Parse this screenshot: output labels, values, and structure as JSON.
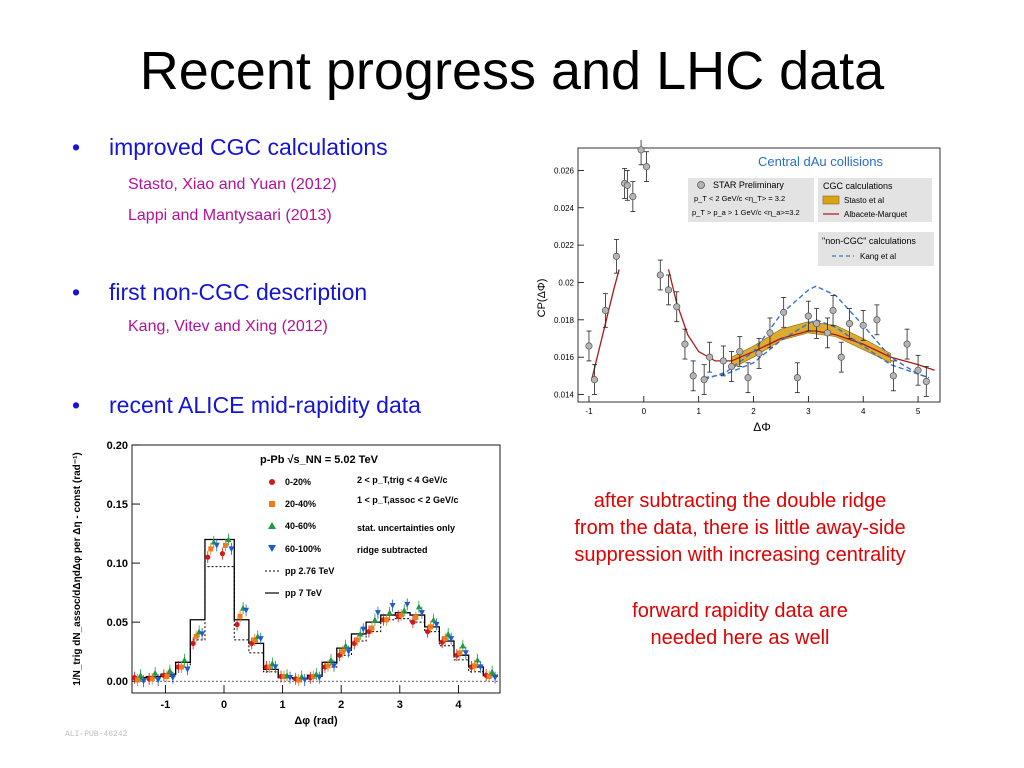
{
  "slide": {
    "title": "Recent progress and LHC data",
    "bullets": [
      {
        "symbol": "•",
        "text": "improved CGC calculations",
        "refs": [
          "Stasto, Xiao and Yuan (2012)",
          "Lappi and Mantysaari (2013)"
        ]
      },
      {
        "symbol": "•",
        "text": "first non-CGC description",
        "refs": [
          "Kang, Vitev and Xing (2012)"
        ]
      },
      {
        "symbol": "•",
        "text": "recent ALICE mid-rapidity data",
        "refs": []
      }
    ],
    "notes": [
      "after subtracting the double ridge",
      "from the data, there is little away-side",
      "suppression with increasing centrality",
      "forward rapidity data are",
      "needed here as well"
    ],
    "figure_id": "ALI-PUB-46242",
    "colors": {
      "bullet": "#1414d8",
      "ref": "#b0129a",
      "note": "#e00000"
    }
  },
  "chart_data": [
    {
      "type": "scatter",
      "title": "Central dAu collisions",
      "xlabel": "ΔΦ",
      "ylabel": "CP(ΔΦ)",
      "xlim": [
        -1.2,
        5.4
      ],
      "ylim": [
        0.0136,
        0.0272
      ],
      "xticks": [
        "-1",
        "0",
        "1",
        "2",
        "3",
        "4",
        "5"
      ],
      "yticks": [
        "0.014",
        "0.016",
        "0.018",
        "0.02",
        "0.022",
        "0.024",
        "0.026"
      ],
      "legend_data": {
        "title": "STAR Preliminary",
        "lines": [
          "p_T < 2 GeV/c <η_T> = 3.2",
          "p_T > p_a > 1 GeV/c <η_a>=3.2"
        ]
      },
      "legend_cgc": {
        "title": "CGC calculations",
        "items": [
          "Stasto et al",
          "Albacete-Marquet"
        ]
      },
      "legend_noncgc": {
        "title": "\"non-CGC\" calculations",
        "items": [
          "Kang et al"
        ]
      },
      "series": [
        {
          "name": "STAR Preliminary",
          "marker": "circle",
          "x": [
            -1.0,
            -0.9,
            -0.7,
            -0.5,
            -0.35,
            -0.3,
            -0.2,
            -0.05,
            0.05,
            0.3,
            0.45,
            0.6,
            0.75,
            0.9,
            1.1,
            1.2,
            1.45,
            1.6,
            1.75,
            1.9,
            2.1,
            2.3,
            2.55,
            2.8,
            3.0,
            3.15,
            3.35,
            3.45,
            3.6,
            3.75,
            4.0,
            4.25,
            4.55,
            4.8,
            5.0,
            5.15
          ],
          "y": [
            0.0166,
            0.0148,
            0.0185,
            0.0214,
            0.0253,
            0.0252,
            0.0246,
            0.0271,
            0.0262,
            0.0204,
            0.0196,
            0.0187,
            0.0167,
            0.015,
            0.0148,
            0.016,
            0.0158,
            0.0155,
            0.0163,
            0.0149,
            0.0162,
            0.0173,
            0.0184,
            0.0149,
            0.0182,
            0.0178,
            0.0173,
            0.0185,
            0.016,
            0.0178,
            0.0177,
            0.018,
            0.015,
            0.0167,
            0.0153,
            0.0147
          ],
          "err": [
            0.0008,
            0.0008,
            0.0009,
            0.0009,
            0.0008,
            0.0008,
            0.0008,
            0.0008,
            0.0008,
            0.0008,
            0.0008,
            0.0008,
            0.0008,
            0.0008,
            0.0008,
            0.0008,
            0.0008,
            0.0008,
            0.0008,
            0.0008,
            0.0008,
            0.0008,
            0.0008,
            0.0008,
            0.0008,
            0.0008,
            0.0008,
            0.0008,
            0.0008,
            0.0008,
            0.0008,
            0.0008,
            0.0008,
            0.0008,
            0.0008,
            0.0008
          ]
        },
        {
          "name": "Albacete-Marquet",
          "line": "solid",
          "color": "#b01818",
          "x": [
            -0.95,
            -0.85,
            -0.7,
            -0.55,
            -0.45,
            0.45,
            0.6,
            0.8,
            1.0,
            1.3,
            1.6,
            2.0,
            2.5,
            3.0,
            3.14,
            3.5,
            4.0,
            4.5,
            5.0,
            5.3
          ],
          "y": [
            0.0148,
            0.016,
            0.0178,
            0.0196,
            0.0207,
            0.0207,
            0.0189,
            0.0172,
            0.0163,
            0.0158,
            0.0158,
            0.0163,
            0.017,
            0.0174,
            0.0174,
            0.0172,
            0.0167,
            0.016,
            0.0156,
            0.0153
          ]
        },
        {
          "name": "Stasto et al",
          "band": true,
          "color": "#d9a21a",
          "x": [
            1.6,
            2.0,
            2.5,
            3.0,
            3.5,
            4.0,
            4.5
          ],
          "lo": [
            0.0154,
            0.016,
            0.0169,
            0.0173,
            0.0171,
            0.0164,
            0.0157
          ],
          "hi": [
            0.016,
            0.0166,
            0.0175,
            0.0179,
            0.0177,
            0.017,
            0.0162
          ]
        },
        {
          "name": "Kang et al",
          "line": "dashed",
          "color": "#3b73c8",
          "curves": [
            {
              "x": [
                1.1,
                1.5,
                2.0,
                2.5,
                3.0,
                3.14,
                3.5,
                4.0,
                4.5,
                5.0,
                5.2
              ],
              "y": [
                0.0148,
                0.0152,
                0.0163,
                0.0183,
                0.0196,
                0.0198,
                0.0193,
                0.0177,
                0.016,
                0.0151,
                0.0149
              ]
            },
            {
              "x": [
                1.1,
                1.5,
                2.0,
                2.5,
                3.0,
                3.14,
                3.5,
                4.0,
                4.5,
                5.0,
                5.2
              ],
              "y": [
                0.0149,
                0.0151,
                0.0157,
                0.0169,
                0.0178,
                0.018,
                0.0176,
                0.0166,
                0.0156,
                0.0151,
                0.0149
              ]
            }
          ]
        }
      ]
    },
    {
      "type": "scatter",
      "title": "p-Pb √s_NN = 5.02 TeV",
      "xlabel": "Δφ (rad)",
      "ylabel": "1/N_trig dN_assoc/dΔηdΔφ per Δη - const (rad⁻¹)",
      "xlim": [
        -1.57,
        4.71
      ],
      "ylim": [
        -0.01,
        0.2
      ],
      "xticks": [
        "-1",
        "0",
        "1",
        "2",
        "3",
        "4"
      ],
      "yticks": [
        "0.00",
        "0.05",
        "0.10",
        "0.15",
        "0.20"
      ],
      "annotations": [
        "2 < p_T,trig < 4 GeV/c",
        "1 < p_T,assoc < 2 GeV/c",
        "stat. uncertainties only",
        "ridge subtracted"
      ],
      "x": [
        -1.45,
        -1.2,
        -0.95,
        -0.7,
        -0.45,
        -0.2,
        0.05,
        0.3,
        0.55,
        0.8,
        1.05,
        1.3,
        1.55,
        1.8,
        2.05,
        2.3,
        2.55,
        2.8,
        3.05,
        3.3,
        3.55,
        3.8,
        4.05,
        4.3,
        4.55
      ],
      "series": [
        {
          "name": "0-20%",
          "marker": "circle",
          "color": "#d01a1a",
          "values": [
            0.003,
            0.002,
            0.005,
            0.012,
            0.032,
            0.105,
            0.108,
            0.048,
            0.032,
            0.012,
            0.004,
            0.002,
            0.003,
            0.012,
            0.022,
            0.032,
            0.042,
            0.052,
            0.055,
            0.05,
            0.042,
            0.033,
            0.022,
            0.012,
            0.005
          ]
        },
        {
          "name": "20-40%",
          "marker": "square",
          "color": "#f07a1c",
          "values": [
            0.001,
            0.002,
            0.004,
            0.012,
            0.038,
            0.112,
            0.115,
            0.055,
            0.035,
            0.012,
            0.004,
            0.001,
            0.004,
            0.013,
            0.025,
            0.035,
            0.045,
            0.052,
            0.056,
            0.054,
            0.046,
            0.036,
            0.024,
            0.013,
            0.004
          ]
        },
        {
          "name": "40-60%",
          "marker": "triangle",
          "color": "#1c9c3c",
          "values": [
            0.005,
            0.007,
            0.009,
            0.018,
            0.042,
            0.118,
            0.12,
            0.062,
            0.038,
            0.015,
            0.005,
            0.004,
            0.006,
            0.018,
            0.03,
            0.04,
            0.052,
            0.058,
            0.06,
            0.063,
            0.052,
            0.04,
            0.03,
            0.018,
            0.008
          ]
        },
        {
          "name": "60-100%",
          "marker": "triangle-down",
          "color": "#1c5cd0",
          "values": [
            0.0,
            0.001,
            0.003,
            0.01,
            0.04,
            0.115,
            0.112,
            0.06,
            0.036,
            0.012,
            0.003,
            0.001,
            0.003,
            0.013,
            0.025,
            0.044,
            0.058,
            0.064,
            0.065,
            0.058,
            0.048,
            0.036,
            0.024,
            0.012,
            0.003
          ]
        },
        {
          "name": "pp 2.76 TeV",
          "line": "dotted-step",
          "color": "#000000",
          "values": [
            0.002,
            0.003,
            0.004,
            0.012,
            0.035,
            0.097,
            0.097,
            0.035,
            0.024,
            0.008,
            0.003,
            0.002,
            0.004,
            0.012,
            0.022,
            0.034,
            0.042,
            0.052,
            0.053,
            0.05,
            0.042,
            0.03,
            0.018,
            0.008,
            0.004
          ]
        },
        {
          "name": "pp 7 TeV",
          "line": "solid-step",
          "color": "#000000",
          "values": [
            0.003,
            0.004,
            0.006,
            0.016,
            0.052,
            0.12,
            0.12,
            0.052,
            0.032,
            0.01,
            0.003,
            0.002,
            0.005,
            0.016,
            0.028,
            0.04,
            0.05,
            0.056,
            0.058,
            0.056,
            0.046,
            0.034,
            0.022,
            0.012,
            0.005
          ]
        }
      ]
    }
  ]
}
